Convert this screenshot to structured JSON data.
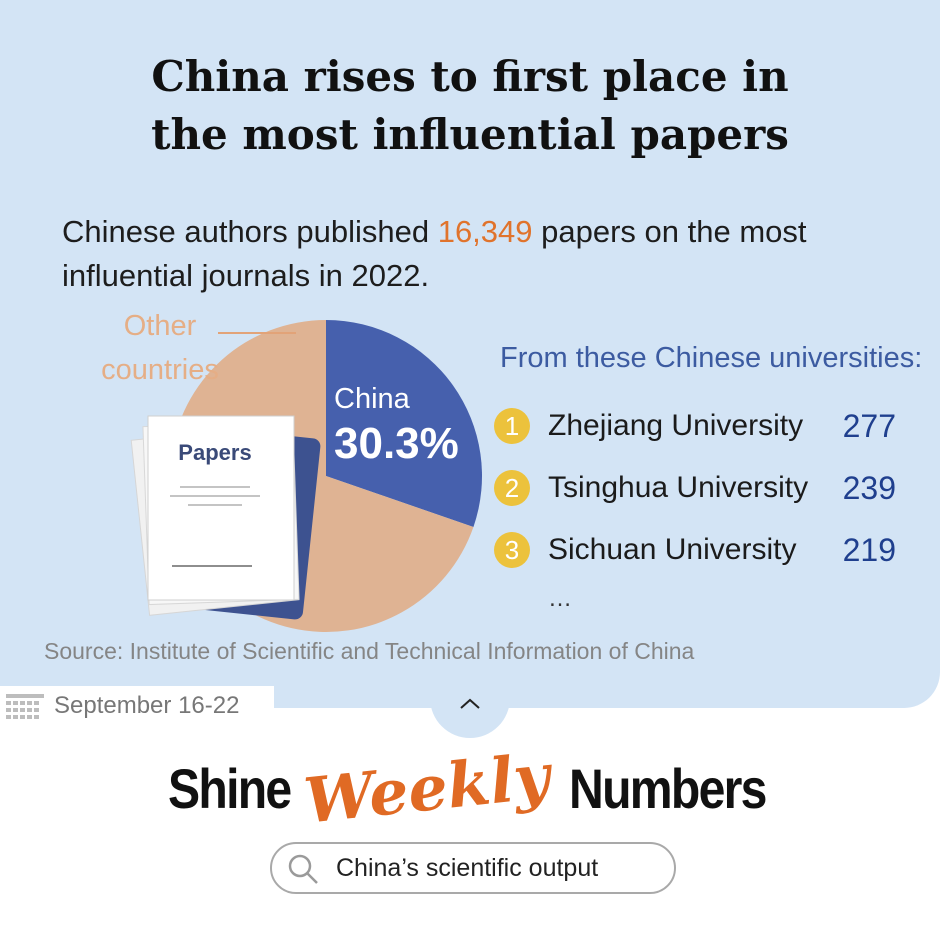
{
  "title": {
    "line1": "China rises to first place in",
    "line2": "the most influential papers"
  },
  "subtitle": {
    "before": "Chinese authors published ",
    "highlight": "16,349",
    "after": " papers on the most influential journals in 2022."
  },
  "chart_data": {
    "type": "pie",
    "slices": [
      {
        "label": "China",
        "value": 30.3,
        "display": "30.3%",
        "color": "#4660ad"
      },
      {
        "label": "Other countries",
        "value": 69.7,
        "color": "#dfb393"
      }
    ]
  },
  "pie_labels": {
    "other_line1": "Other",
    "other_line2": "countries",
    "china": "China",
    "china_pct": "30.3%"
  },
  "papers_label": "Papers",
  "universities": {
    "heading": "From these Chinese universities:",
    "items": [
      {
        "rank": "1",
        "name": "Zhejiang University",
        "count": "277"
      },
      {
        "rank": "2",
        "name": "Tsinghua University",
        "count": "239"
      },
      {
        "rank": "3",
        "name": "Sichuan University",
        "count": "219"
      }
    ],
    "more": "…"
  },
  "source": "Source: Institute of Scientific and Technical Information of China",
  "date_range": "September 16-22",
  "logo": {
    "word1": "Shine",
    "word2": "Weekly",
    "word3": "Numbers"
  },
  "search": {
    "text": "China’s scientific output"
  },
  "colors": {
    "background": "#d3e4f5",
    "accent": "#e0732c",
    "china": "#4660ad",
    "other": "#dfb393",
    "badge": "#ecc23c"
  },
  "icons": [
    "calendar-icon",
    "chevron-up-icon",
    "search-icon",
    "papers-illustration"
  ]
}
